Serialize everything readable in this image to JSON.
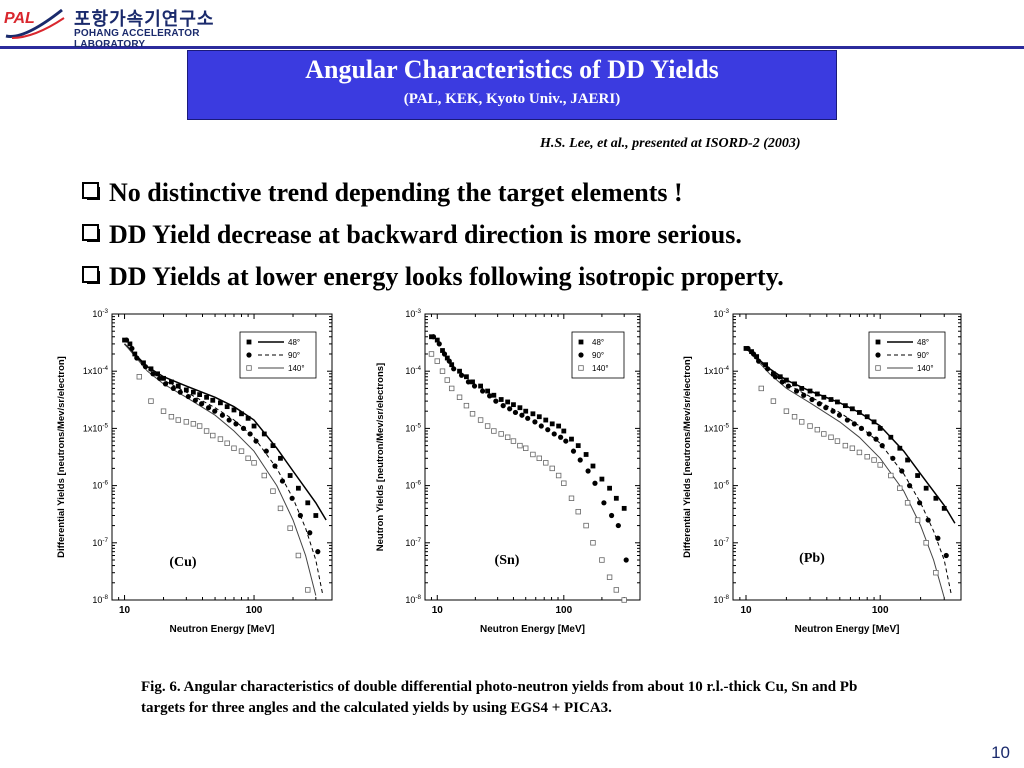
{
  "logo": {
    "brand": "PAL",
    "korean": "포항가속기연구소",
    "english": "POHANG ACCELERATOR LABORATORY"
  },
  "title": {
    "main": "Angular Characteristics of DD Yields",
    "sub": "(PAL, KEK, Kyoto Univ., JAERI)"
  },
  "reference": "H.S. Lee, et al., presented at ISORD-2 (2003)",
  "bullets": [
    "No distinctive trend depending the target elements !",
    "DD Yield decrease at backward direction is more serious.",
    "DD Yields at lower energy looks following isotropic property."
  ],
  "caption": "Fig. 6. Angular characteristics of double differential photo-neutron yields from about 10 r.l.-thick Cu, Sn and Pb targets for three angles and the calculated yields by using EGS4 + PICA3.",
  "page_number": "10",
  "colors": {
    "title_bg": "#3b3be0",
    "line": "#2b2b9c",
    "brand_red": "#d9272e"
  },
  "chart_data": [
    {
      "type": "scatter",
      "label": "(Cu)",
      "xlabel": "Neutron Energy [MeV]",
      "ylabel": "Differential Yields [neutrons/Mev/sr/electron]",
      "x_scale": "log",
      "y_scale": "log",
      "xlim": [
        8,
        400
      ],
      "ylim": [
        1e-08,
        0.001
      ],
      "x_ticks": [
        "10",
        "100"
      ],
      "y_ticks": [
        "10-8",
        "10-7",
        "10-6",
        "1x10-5",
        "1x10-4",
        "10-3"
      ],
      "legend": "top-right",
      "series": [
        {
          "name": "48°",
          "marker": "square-filled",
          "x": [
            10,
            11,
            12,
            14,
            16,
            18,
            20,
            23,
            26,
            30,
            34,
            38,
            43,
            48,
            55,
            62,
            70,
            80,
            90,
            100,
            120,
            140,
            160,
            190,
            220,
            260,
            300
          ],
          "y": [
            0.00035,
            0.0003,
            0.0002,
            0.00014,
            0.00011,
            9e-05,
            7.5e-05,
            6.5e-05,
            5.5e-05,
            4.7e-05,
            4.3e-05,
            3.9e-05,
            3.5e-05,
            3.1e-05,
            2.8e-05,
            2.4e-05,
            2.1e-05,
            1.8e-05,
            1.5e-05,
            1.1e-05,
            8e-06,
            5e-06,
            3e-06,
            1.5e-06,
            9e-07,
            5e-07,
            3e-07
          ]
        },
        {
          "name": "90°",
          "marker": "circle-filled",
          "x": [
            10,
            11,
            12,
            14,
            16,
            18,
            20,
            23,
            26,
            30,
            34,
            38,
            43,
            48,
            55,
            62,
            70,
            80,
            90,
            100,
            120,
            140,
            160,
            190,
            220,
            260,
            300
          ],
          "y": [
            0.00035,
            0.00025,
            0.00017,
            0.00012,
            9e-05,
            7.5e-05,
            6e-05,
            5e-05,
            4.3e-05,
            3.6e-05,
            3.1e-05,
            2.7e-05,
            2.3e-05,
            2e-05,
            1.7e-05,
            1.4e-05,
            1.2e-05,
            1e-05,
            8e-06,
            6e-06,
            4e-06,
            2.2e-06,
            1.2e-06,
            6e-07,
            3e-07,
            1.5e-07,
            7e-08
          ]
        },
        {
          "name": "140°",
          "marker": "square-open",
          "x": [
            13,
            16,
            20,
            23,
            26,
            30,
            34,
            38,
            43,
            48,
            55,
            62,
            70,
            80,
            90,
            100,
            120,
            140,
            160,
            190,
            220,
            260
          ],
          "y": [
            8e-05,
            3e-05,
            2e-05,
            1.6e-05,
            1.4e-05,
            1.3e-05,
            1.2e-05,
            1.1e-05,
            9e-06,
            7.5e-06,
            6.5e-06,
            5.5e-06,
            4.5e-06,
            4e-06,
            3e-06,
            2.5e-06,
            1.5e-06,
            8e-07,
            4e-07,
            1.8e-07,
            6e-08,
            1.5e-08
          ]
        }
      ],
      "curves": [
        {
          "name": "48°",
          "style": "solid",
          "x": [
            10,
            15,
            20,
            30,
            50,
            70,
            100,
            150,
            200,
            300,
            360
          ],
          "y": [
            0.0003,
            0.00012,
            8e-05,
            5.5e-05,
            3.5e-05,
            2.4e-05,
            1.4e-05,
            4.5e-06,
            1.8e-06,
            5e-07,
            2.5e-07
          ]
        },
        {
          "name": "90°",
          "style": "dashed",
          "x": [
            10,
            15,
            20,
            30,
            50,
            70,
            100,
            150,
            200,
            250,
            300,
            340
          ],
          "y": [
            0.0003,
            0.00011,
            7e-05,
            4.3e-05,
            2.3e-05,
            1.4e-05,
            7e-06,
            2e-06,
            6e-07,
            1.8e-07,
            5e-08,
            1.2e-08
          ]
        },
        {
          "name": "140°",
          "style": "solid-thin",
          "x": [
            10,
            15,
            20,
            30,
            50,
            70,
            100,
            150,
            200,
            250,
            300
          ],
          "y": [
            0.0003,
            0.0001,
            6e-05,
            3.5e-05,
            1.7e-05,
            9e-06,
            4e-06,
            1e-06,
            2.5e-07,
            6e-08,
            1.2e-08
          ]
        }
      ]
    },
    {
      "type": "scatter",
      "label": "(Sn)",
      "xlabel": "Neutron Energy [MeV]",
      "ylabel": "Neutron Yields [neutron/Mev/sr/electrons]",
      "x_scale": "log",
      "y_scale": "log",
      "xlim": [
        8,
        400
      ],
      "ylim": [
        1e-08,
        0.001
      ],
      "x_ticks": [
        "10",
        "100"
      ],
      "y_ticks": [
        "10-8",
        "10-7",
        "10-6",
        "10-5",
        "10-4",
        "10-3"
      ],
      "legend": "top-right",
      "series": [
        {
          "name": "48°",
          "marker": "square-filled",
          "x": [
            9,
            10,
            11,
            12,
            13,
            15,
            17,
            19,
            22,
            25,
            28,
            32,
            36,
            40,
            45,
            50,
            57,
            64,
            72,
            81,
            91,
            100,
            115,
            130,
            150,
            170,
            200,
            230,
            260,
            300
          ],
          "y": [
            0.0004,
            0.00035,
            0.00023,
            0.00017,
            0.00013,
            0.0001,
            8e-05,
            6.5e-05,
            5.5e-05,
            4.5e-05,
            3.8e-05,
            3.2e-05,
            2.9e-05,
            2.6e-05,
            2.3e-05,
            2e-05,
            1.8e-05,
            1.6e-05,
            1.4e-05,
            1.2e-05,
            1.1e-05,
            9e-06,
            6.5e-06,
            5e-06,
            3.5e-06,
            2.2e-06,
            1.3e-06,
            9e-07,
            6e-07,
            4e-07
          ]
        },
        {
          "name": "90°",
          "marker": "circle-filled",
          "x": [
            9,
            10,
            11,
            12,
            13,
            15,
            17,
            19,
            22,
            25,
            28,
            32,
            36,
            40,
            45,
            50,
            57,
            64,
            72,
            81,
            91,
            100,
            115,
            130,
            150,
            170,
            200,
            230,
            260,
            300
          ],
          "y": [
            0.0004,
            0.0003,
            0.0002,
            0.00015,
            0.00011,
            8.5e-05,
            6.5e-05,
            5.5e-05,
            4.5e-05,
            3.7e-05,
            3e-05,
            2.5e-05,
            2.2e-05,
            1.9e-05,
            1.7e-05,
            1.5e-05,
            1.3e-05,
            1.1e-05,
            9.5e-06,
            8e-06,
            7e-06,
            6e-06,
            4e-06,
            2.8e-06,
            1.8e-06,
            1.1e-06,
            5e-07,
            3e-07,
            2e-07,
            5e-08
          ]
        },
        {
          "name": "140°",
          "marker": "square-open",
          "x": [
            9,
            10,
            11,
            12,
            13,
            15,
            17,
            19,
            22,
            25,
            28,
            32,
            36,
            40,
            45,
            50,
            57,
            64,
            72,
            81,
            91,
            100,
            115,
            130,
            150,
            170,
            200,
            230,
            260,
            300
          ],
          "y": [
            0.0002,
            0.00015,
            0.0001,
            7e-05,
            5e-05,
            3.5e-05,
            2.5e-05,
            1.8e-05,
            1.4e-05,
            1.1e-05,
            9e-06,
            8e-06,
            7e-06,
            6e-06,
            5e-06,
            4.5e-06,
            3.5e-06,
            3e-06,
            2.5e-06,
            2e-06,
            1.5e-06,
            1.1e-06,
            6e-07,
            3.5e-07,
            2e-07,
            1e-07,
            5e-08,
            2.5e-08,
            1.5e-08,
            1e-08
          ]
        }
      ]
    },
    {
      "type": "scatter",
      "label": "(Pb)",
      "xlabel": "Neutron Energy [MeV]",
      "ylabel": "Differential Yields [neutrons/Mev/sr/electron]",
      "x_scale": "log",
      "y_scale": "log",
      "xlim": [
        8,
        400
      ],
      "ylim": [
        1e-08,
        0.001
      ],
      "x_ticks": [
        "10",
        "100"
      ],
      "y_ticks": [
        "10-8",
        "10-7",
        "10-6",
        "1x10-5",
        "1x10-4",
        "10-3"
      ],
      "legend": "top-right",
      "series": [
        {
          "name": "48°",
          "marker": "square-filled",
          "x": [
            10,
            11,
            12,
            14,
            16,
            18,
            20,
            23,
            26,
            30,
            34,
            38,
            43,
            48,
            55,
            62,
            70,
            80,
            90,
            100,
            120,
            140,
            160,
            190,
            220,
            260,
            300
          ],
          "y": [
            0.00025,
            0.00022,
            0.00018,
            0.00013,
            9e-05,
            8e-05,
            7e-05,
            6e-05,
            5e-05,
            4.5e-05,
            4e-05,
            3.5e-05,
            3.2e-05,
            2.9e-05,
            2.5e-05,
            2.2e-05,
            1.9e-05,
            1.6e-05,
            1.3e-05,
            1e-05,
            7e-06,
            4.5e-06,
            2.8e-06,
            1.5e-06,
            9e-07,
            6e-07,
            4e-07
          ]
        },
        {
          "name": "90°",
          "marker": "circle-filled",
          "x": [
            10,
            11,
            12,
            14,
            16,
            18,
            20,
            23,
            26,
            30,
            34,
            38,
            43,
            48,
            55,
            62,
            70,
            80,
            90,
            100,
            120,
            140,
            160,
            190,
            220,
            260,
            300
          ],
          "y": [
            0.00025,
            0.0002,
            0.00015,
            0.00011,
            8e-05,
            6.5e-05,
            5.5e-05,
            4.5e-05,
            3.8e-05,
            3.2e-05,
            2.7e-05,
            2.3e-05,
            2e-05,
            1.7e-05,
            1.4e-05,
            1.2e-05,
            1e-05,
            8e-06,
            6.5e-06,
            5e-06,
            3e-06,
            1.8e-06,
            1e-06,
            5e-07,
            2.5e-07,
            1.2e-07,
            6e-08
          ]
        },
        {
          "name": "140°",
          "marker": "square-open",
          "x": [
            13,
            16,
            20,
            23,
            26,
            30,
            34,
            38,
            43,
            48,
            55,
            62,
            70,
            80,
            90,
            100,
            120,
            140,
            160,
            190,
            220,
            260
          ],
          "y": [
            5e-05,
            3e-05,
            2e-05,
            1.6e-05,
            1.3e-05,
            1.1e-05,
            9.5e-06,
            8e-06,
            7e-06,
            6e-06,
            5e-06,
            4.5e-06,
            3.8e-06,
            3.2e-06,
            2.8e-06,
            2.3e-06,
            1.5e-06,
            9e-07,
            5e-07,
            2.5e-07,
            1e-07,
            3e-08
          ]
        }
      ],
      "curves": [
        {
          "name": "48°",
          "style": "solid",
          "x": [
            10,
            15,
            20,
            30,
            50,
            70,
            100,
            150,
            200,
            300,
            360
          ],
          "y": [
            0.00025,
            0.00011,
            7e-05,
            4.5e-05,
            2.8e-05,
            1.9e-05,
            1.1e-05,
            4e-06,
            1.6e-06,
            4.5e-07,
            2.2e-07
          ]
        },
        {
          "name": "90°",
          "style": "dashed",
          "x": [
            10,
            15,
            20,
            30,
            50,
            70,
            100,
            150,
            200,
            250,
            300,
            340
          ],
          "y": [
            0.00025,
            0.0001,
            6e-05,
            3.6e-05,
            1.9e-05,
            1.1e-05,
            5.5e-06,
            1.6e-06,
            5e-07,
            1.6e-07,
            5e-08,
            1.2e-08
          ]
        },
        {
          "name": "140°",
          "style": "solid-thin",
          "x": [
            10,
            15,
            20,
            30,
            50,
            70,
            100,
            150,
            200,
            250,
            300
          ],
          "y": [
            0.00025,
            9e-05,
            5e-05,
            2.8e-05,
            1.3e-05,
            7e-06,
            3e-06,
            8e-07,
            2e-07,
            5e-08,
            1.1e-08
          ]
        }
      ]
    }
  ]
}
